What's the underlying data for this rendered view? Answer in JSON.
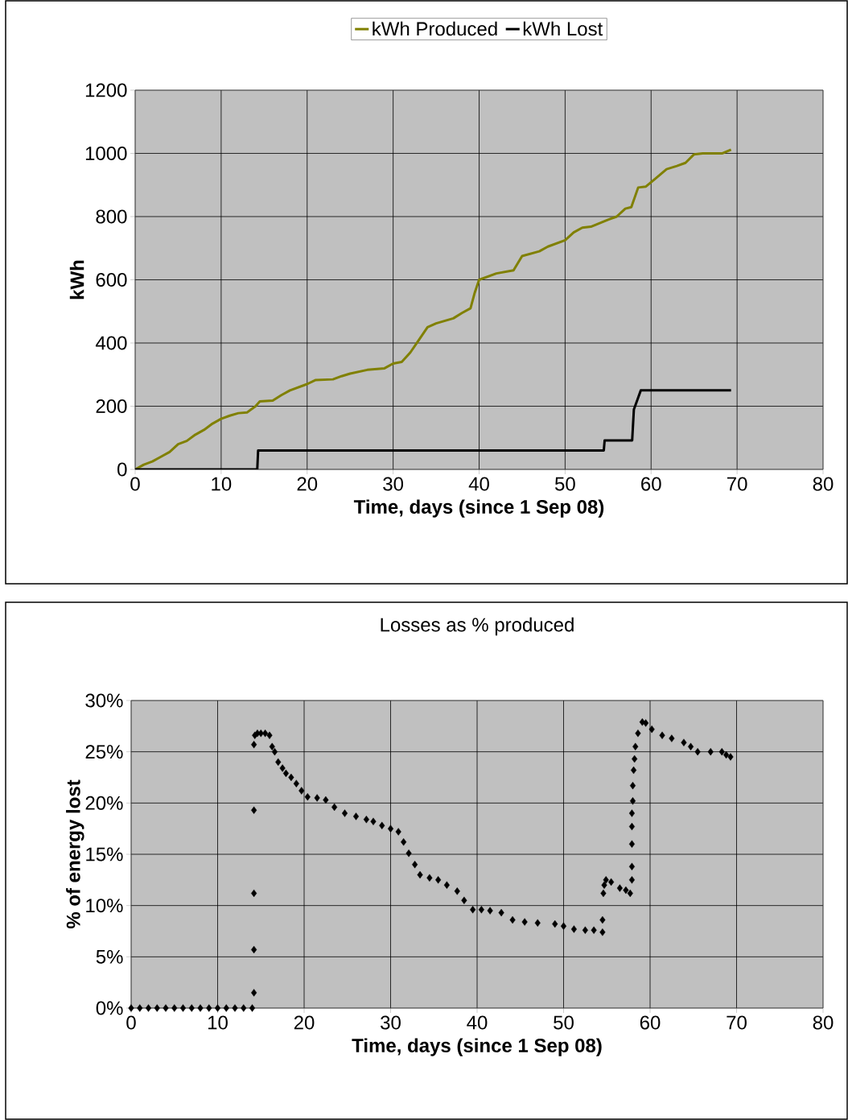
{
  "chart_data": [
    {
      "type": "line",
      "xlabel": "Time, days (since 1 Sep 08)",
      "ylabel": "kWh",
      "xlim": [
        0,
        80
      ],
      "ylim": [
        0,
        1200
      ],
      "xticks": [
        0,
        10,
        20,
        30,
        40,
        50,
        60,
        70,
        80
      ],
      "yticks": [
        0,
        200,
        400,
        600,
        800,
        1000,
        1200
      ],
      "grid": true,
      "legend": "top",
      "marker": "none",
      "line_style": "solid",
      "series": [
        {
          "name": "kWh Produced",
          "color": "#808000",
          "x": [
            0,
            1,
            2,
            3,
            4,
            5,
            6,
            7,
            8,
            9,
            10,
            11,
            12,
            13,
            14,
            14.5,
            16,
            17,
            18,
            20,
            21,
            23,
            24,
            25,
            27,
            29,
            30,
            31,
            32,
            33,
            34,
            35,
            37,
            38,
            39,
            39.5,
            40,
            42,
            44,
            45,
            47,
            48,
            50,
            51,
            52,
            53,
            55,
            56,
            57,
            57.7,
            58.5,
            59.4,
            60.5,
            61.8,
            63,
            64,
            65,
            66,
            67,
            68.3,
            69.3
          ],
          "values": [
            0,
            15,
            25,
            40,
            55,
            80,
            90,
            110,
            125,
            145,
            160,
            170,
            178,
            180,
            200,
            215,
            218,
            235,
            250,
            270,
            283,
            285,
            295,
            303,
            315,
            320,
            335,
            340,
            370,
            410,
            450,
            462,
            478,
            495,
            510,
            560,
            600,
            620,
            630,
            675,
            690,
            705,
            725,
            750,
            765,
            768,
            790,
            800,
            825,
            830,
            892,
            895,
            920,
            950,
            960,
            970,
            997,
            1000,
            1000,
            1000,
            1012
          ]
        },
        {
          "name": "kWh Lost",
          "color": "#000000",
          "x": [
            0,
            14.2,
            14.3,
            54.5,
            54.6,
            57.8,
            58,
            58.4,
            58.8,
            69.3
          ],
          "values": [
            0,
            0,
            60,
            60,
            92,
            92,
            190,
            220,
            250,
            250
          ]
        }
      ]
    },
    {
      "type": "scatter",
      "title": "Losses as % produced",
      "xlabel": "Time, days (since 1 Sep 08)",
      "ylabel": "% of energy lost",
      "xlim": [
        0,
        80
      ],
      "ylim": [
        0,
        30
      ],
      "xticks": [
        0,
        10,
        20,
        30,
        40,
        50,
        60,
        70,
        80
      ],
      "yticks": [
        {
          "value": 0,
          "label": "0%"
        },
        {
          "value": 5,
          "label": "5%"
        },
        {
          "value": 10,
          "label": "10%"
        },
        {
          "value": 15,
          "label": "15%"
        },
        {
          "value": 20,
          "label": "20%"
        },
        {
          "value": 25,
          "label": "25%"
        },
        {
          "value": 30,
          "label": "30%"
        }
      ],
      "grid": true,
      "marker": "diamond",
      "series": [
        {
          "color": "#000000",
          "x": [
            0,
            1,
            2,
            3,
            4,
            5,
            6,
            7,
            8,
            9,
            10,
            11,
            12,
            13,
            14,
            14.2,
            14.2,
            14.2,
            14.2,
            14.2,
            14.3,
            14.6,
            15,
            15.5,
            16,
            16.3,
            16.6,
            17,
            17.5,
            17.9,
            18.5,
            19.1,
            19.7,
            20.4,
            21.5,
            22.5,
            23.5,
            24.7,
            26,
            27.2,
            28,
            29,
            30,
            30.9,
            31.5,
            32.1,
            32.8,
            33.4,
            34.5,
            35.5,
            36.5,
            37.7,
            38.5,
            39.5,
            40.5,
            41.5,
            42.8,
            44.1,
            45.5,
            47,
            49,
            50,
            51.2,
            52.5,
            53.5,
            54.5,
            54.5,
            54.6,
            54.7,
            54.9,
            55.5,
            56.5,
            57.2,
            57.7,
            57.9,
            57.9,
            57.9,
            57.9,
            57.9,
            58,
            58,
            58.1,
            58.2,
            58.3,
            58.6,
            59.1,
            59.5,
            60.2,
            61.4,
            62.5,
            63.9,
            64.7,
            65.5,
            67,
            68.3,
            68.8,
            69.3
          ],
          "values": [
            0,
            0,
            0,
            0,
            0,
            0,
            0,
            0,
            0,
            0,
            0,
            0,
            0,
            0,
            0,
            1.5,
            5.7,
            11.2,
            19.3,
            25.7,
            26.6,
            26.8,
            26.8,
            26.8,
            26.6,
            25.5,
            25,
            24,
            23.4,
            22.9,
            22.5,
            21.9,
            21.2,
            20.6,
            20.5,
            20.3,
            19.6,
            19,
            18.7,
            18.4,
            18.2,
            17.8,
            17.5,
            17.2,
            16.2,
            15.1,
            14,
            13,
            12.7,
            12.5,
            12,
            11.4,
            10.5,
            9.6,
            9.6,
            9.5,
            9.3,
            8.6,
            8.4,
            8.3,
            8.2,
            8,
            7.7,
            7.6,
            7.6,
            7.4,
            8.6,
            11.2,
            12,
            12.5,
            12.3,
            11.7,
            11.5,
            11.2,
            12.5,
            13.8,
            16,
            17.7,
            19,
            20.2,
            21.7,
            23.2,
            24.3,
            25.5,
            26.8,
            27.9,
            27.8,
            27.2,
            26.6,
            26.3,
            25.9,
            25.5,
            25,
            25,
            25,
            24.7,
            24.5
          ]
        }
      ]
    }
  ]
}
